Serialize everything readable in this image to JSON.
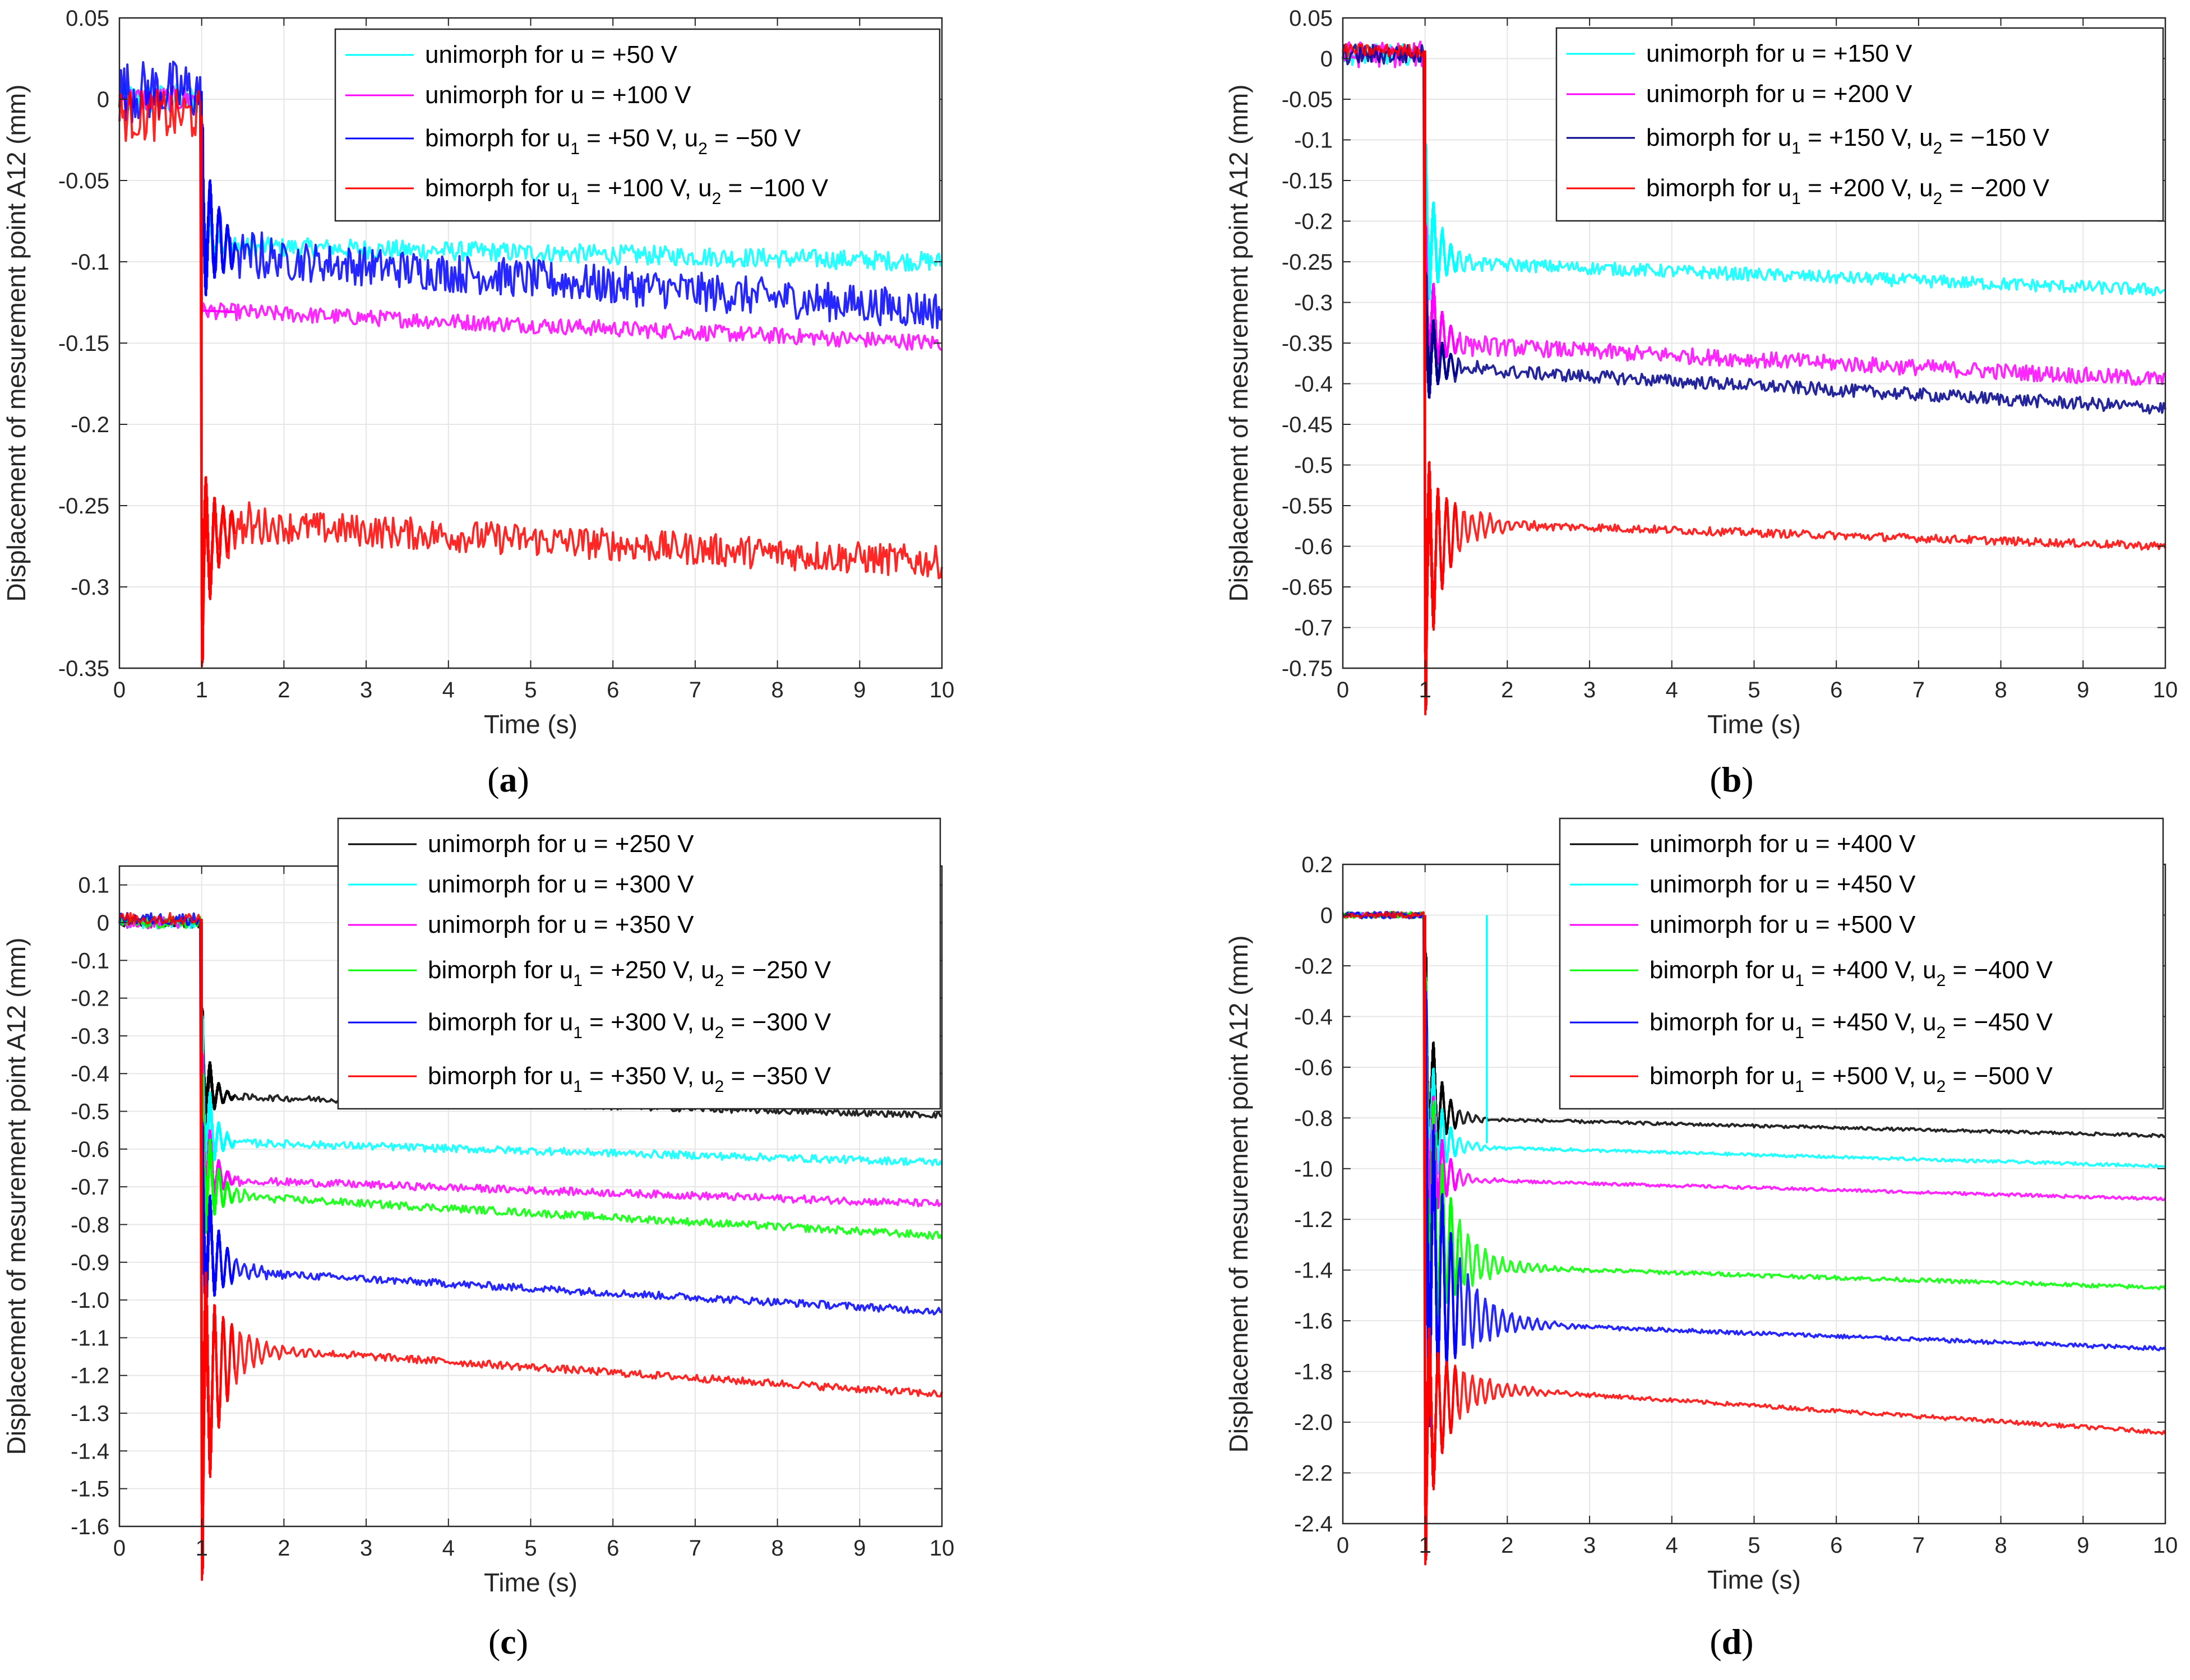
{
  "chart_data": [
    {
      "type": "line",
      "id": "a",
      "caption": "a",
      "xlabel": "Time (s)",
      "ylabel": "Displacement of mesurement point A12 (mm)",
      "xlim": [
        0,
        10
      ],
      "ylim": [
        -0.35,
        0.05
      ],
      "xticks": [
        0,
        1,
        2,
        3,
        4,
        5,
        6,
        7,
        8,
        9,
        10
      ],
      "xtick_labels": [
        "0",
        "1",
        "2",
        "3",
        "4",
        "5",
        "6",
        "7",
        "8",
        "9",
        "10"
      ],
      "yticks": [
        0.05,
        0,
        -0.05,
        -0.1,
        -0.15,
        -0.2,
        -0.25,
        -0.3,
        -0.35
      ],
      "ytick_labels": [
        "0.05",
        "0",
        "-0.05",
        "-0.1",
        "-0.15",
        "-0.2",
        "-0.25",
        "-0.3",
        "-0.35"
      ],
      "grid": true,
      "legend": "top-right",
      "series": [
        {
          "name": "unimorph for u = +50 V",
          "label_parts": [
            "unimorph for u = +50 V"
          ],
          "color": "#00ffff",
          "pre": 0.0,
          "spike": -0.07,
          "settle": -0.09,
          "tau": 0.3,
          "end": -0.1,
          "noise": 0.006
        },
        {
          "name": "unimorph for u = +100 V",
          "label_parts": [
            "unimorph for u = +100 V"
          ],
          "color": "#ff00ff",
          "pre": 0.0,
          "spike": -0.13,
          "settle": -0.13,
          "tau": 0.3,
          "end": -0.15,
          "noise": 0.005
        },
        {
          "name": "bimorph for u1 = +50 V, u2 = −50 V",
          "label_parts": [
            "bimorph for u",
            "1",
            " = +50 V, u",
            "2",
            " = −50 V"
          ],
          "color": "#0000ff",
          "pre": 0.005,
          "spike": -0.04,
          "settle": -0.095,
          "tau": 0.35,
          "end": -0.13,
          "noise": 0.012
        },
        {
          "name": "bimorph for u1 = +100 V, u2 = −100 V",
          "label_parts": [
            "bimorph for u",
            "1",
            " = +100 V, u",
            "2",
            " = −100 V"
          ],
          "color": "#ff0000",
          "pre": -0.01,
          "spike": -0.32,
          "settle": -0.26,
          "tau": 0.3,
          "end": -0.285,
          "noise": 0.01
        }
      ]
    },
    {
      "type": "line",
      "id": "b",
      "caption": "b",
      "xlabel": "Time (s)",
      "ylabel": "Displacement of mesurement point A12 (mm)",
      "xlim": [
        0,
        10
      ],
      "ylim": [
        -0.75,
        0.05
      ],
      "xticks": [
        0,
        1,
        2,
        3,
        4,
        5,
        6,
        7,
        8,
        9,
        10
      ],
      "xtick_labels": [
        "0",
        "1",
        "2",
        "3",
        "4",
        "5",
        "6",
        "7",
        "8",
        "9",
        "10"
      ],
      "yticks": [
        0.05,
        0,
        -0.05,
        -0.1,
        -0.15,
        -0.2,
        -0.25,
        -0.3,
        -0.35,
        -0.4,
        -0.45,
        -0.5,
        -0.55,
        -0.6,
        -0.65,
        -0.7,
        -0.75
      ],
      "ytick_labels": [
        "0.05",
        "0",
        "-0.05",
        "-0.1",
        "-0.15",
        "-0.2",
        "-0.25",
        "-0.3",
        "-0.35",
        "-0.4",
        "-0.45",
        "-0.5",
        "-0.55",
        "-0.6",
        "-0.65",
        "-0.7",
        "-0.75"
      ],
      "grid": true,
      "legend": "top-right",
      "series": [
        {
          "name": "unimorph for u = +150 V",
          "label_parts": [
            "unimorph for u = +150 V"
          ],
          "color": "#00ffff",
          "pre": 0.005,
          "spike": -0.15,
          "settle": -0.25,
          "tau": 0.25,
          "end": -0.285,
          "noise": 0.008
        },
        {
          "name": "unimorph for u = +200 V",
          "label_parts": [
            "unimorph for u = +200 V"
          ],
          "color": "#ff00ff",
          "pre": 0.005,
          "spike": -0.25,
          "settle": -0.35,
          "tau": 0.25,
          "end": -0.395,
          "noise": 0.01
        },
        {
          "name": "bimorph for u1 = +150 V, u2 = −150 V",
          "label_parts": [
            "bimorph for u",
            "1",
            " = +150 V, u",
            "2",
            " = −150 V"
          ],
          "color": "#00008b",
          "pre": 0.005,
          "spike": -0.3,
          "settle": -0.38,
          "tau": 0.25,
          "end": -0.43,
          "noise": 0.008
        },
        {
          "name": "bimorph for u1 = +200 V, u2 = −200 V",
          "label_parts": [
            "bimorph for u",
            "1",
            " = +200 V, u",
            "2",
            " = −200 V"
          ],
          "color": "#ff0000",
          "pre": 0.01,
          "spike": -0.73,
          "settle": -0.57,
          "tau": 0.35,
          "end": -0.6,
          "noise": 0.005
        }
      ]
    },
    {
      "type": "line",
      "id": "c",
      "caption": "c",
      "xlabel": "Time (s)",
      "ylabel": "Displacement of mesurement point A12 (mm)",
      "xlim": [
        0,
        10
      ],
      "ylim": [
        -1.6,
        0.15
      ],
      "xticks": [
        0,
        1,
        2,
        3,
        4,
        5,
        6,
        7,
        8,
        9,
        10
      ],
      "xtick_labels": [
        "0",
        "1",
        "2",
        "3",
        "4",
        "5",
        "6",
        "7",
        "8",
        "9",
        "10"
      ],
      "yticks": [
        0.1,
        0,
        -0.1,
        -0.2,
        -0.3,
        -0.4,
        -0.5,
        -0.6,
        -0.7,
        -0.8,
        -0.9,
        -1.0,
        -1.1,
        -1.2,
        -1.3,
        -1.4,
        -1.5,
        -1.6
      ],
      "ytick_labels": [
        "0.1",
        "0",
        "-0.1",
        "-0.2",
        "-0.3",
        "-0.4",
        "-0.5",
        "-0.6",
        "-0.7",
        "-0.8",
        "-0.9",
        "-1.0",
        "-1.1",
        "-1.2",
        "-1.3",
        "-1.4",
        "-1.5",
        "-1.6"
      ],
      "grid": true,
      "legend": "top-right",
      "series": [
        {
          "name": "unimorph for u = +250 V",
          "label_parts": [
            "unimorph for u = +250 V"
          ],
          "color": "#000000",
          "pre": 0.0,
          "spike": -0.3,
          "settle": -0.46,
          "tau": 0.15,
          "end": -0.51,
          "noise": 0.008
        },
        {
          "name": "unimorph for u = +300 V",
          "label_parts": [
            "unimorph for u = +300 V"
          ],
          "color": "#00ffff",
          "pre": 0.0,
          "spike": -0.35,
          "settle": -0.58,
          "tau": 0.15,
          "end": -0.635,
          "noise": 0.01
        },
        {
          "name": "unimorph for u = +350 V",
          "label_parts": [
            "unimorph for u = +350 V"
          ],
          "color": "#ff00ff",
          "pre": 0.0,
          "spike": -0.45,
          "settle": -0.68,
          "tau": 0.15,
          "end": -0.745,
          "noise": 0.01
        },
        {
          "name": "bimorph for u1 = +250 V, u2 = −250 V",
          "label_parts": [
            "bimorph for u",
            "1",
            " = +250 V, u",
            "2",
            " = −250 V"
          ],
          "color": "#00ff00",
          "pre": 0.0,
          "spike": -0.5,
          "settle": -0.72,
          "tau": 0.2,
          "end": -0.83,
          "noise": 0.01
        },
        {
          "name": "bimorph for u1 = +300 V, u2 = −300 V",
          "label_parts": [
            "bimorph for u",
            "1",
            " = +300 V, u",
            "2",
            " = −300 V"
          ],
          "color": "#0000ff",
          "pre": 0.01,
          "spike": -0.65,
          "settle": -0.92,
          "tau": 0.25,
          "end": -1.03,
          "noise": 0.01
        },
        {
          "name": "bimorph for u1 = +350 V, u2 = −350 V",
          "label_parts": [
            "bimorph for u",
            "1",
            " = +350 V, u",
            "2",
            " = −350 V"
          ],
          "color": "#ff0000",
          "pre": 0.01,
          "spike": -1.54,
          "settle": -1.12,
          "tau": 0.35,
          "end": -1.25,
          "noise": 0.01
        }
      ]
    },
    {
      "type": "line",
      "id": "d",
      "caption": "d",
      "xlabel": "Time (s)",
      "ylabel": "Displacement of mesurement point A12 (mm)",
      "xlim": [
        0,
        10
      ],
      "ylim": [
        -2.4,
        0.2
      ],
      "xticks": [
        0,
        1,
        2,
        3,
        4,
        5,
        6,
        7,
        8,
        9,
        10
      ],
      "xtick_labels": [
        "0",
        "1",
        "2",
        "3",
        "4",
        "5",
        "6",
        "7",
        "8",
        "9",
        "10"
      ],
      "yticks": [
        0.2,
        0,
        -0.2,
        -0.4,
        -0.6,
        -0.8,
        -1.0,
        -1.2,
        -1.4,
        -1.6,
        -1.8,
        -2.0,
        -2.2,
        -2.4
      ],
      "ytick_labels": [
        "0.2",
        "0",
        "-0.2",
        "-0.4",
        "-0.6",
        "-0.8",
        "-1.0",
        "-1.2",
        "-1.4",
        "-1.6",
        "-1.8",
        "-2.0",
        "-2.2",
        "-2.4"
      ],
      "grid": true,
      "legend": "top-right",
      "series": [
        {
          "name": "unimorph for u = +400 V",
          "label_parts": [
            "unimorph for u = +400 V"
          ],
          "color": "#000000",
          "pre": 0.0,
          "spike": -0.35,
          "settle": -0.8,
          "tau": 0.2,
          "end": -0.87,
          "noise": 0.006
        },
        {
          "name": "unimorph for u = +450 V",
          "label_parts": [
            "unimorph for u = +450 V"
          ],
          "color": "#00ffff",
          "pre": 0.0,
          "spike": -0.45,
          "settle": -0.91,
          "tau": 0.2,
          "end": -0.99,
          "noise": 0.006,
          "glitch": {
            "x": 1.75,
            "to": 0.0,
            "from": -0.9
          }
        },
        {
          "name": "unimorph for u = +500 V",
          "label_parts": [
            "unimorph for u = +500 V"
          ],
          "color": "#ff00ff",
          "pre": 0.0,
          "spike": -0.55,
          "settle": -1.04,
          "tau": 0.2,
          "end": -1.12,
          "noise": 0.006
        },
        {
          "name": "bimorph for u1 = +400 V, u2 = −400 V",
          "label_parts": [
            "bimorph for u",
            "1",
            " = +400 V, u",
            "2",
            " = −400 V"
          ],
          "color": "#00ff00",
          "pre": 0.0,
          "spike": -0.6,
          "settle": -1.38,
          "tau": 0.35,
          "end": -1.47,
          "noise": 0.008
        },
        {
          "name": "bimorph for u1 = +450 V, u2 = −450 V",
          "label_parts": [
            "bimorph for u",
            "1",
            " = +450 V, u",
            "2",
            " = −450 V"
          ],
          "color": "#0000ff",
          "pre": 0.0,
          "spike": -0.7,
          "settle": -1.6,
          "tau": 0.4,
          "end": -1.71,
          "noise": 0.008
        },
        {
          "name": "bimorph for u1 = +500 V, u2 = −500 V",
          "label_parts": [
            "bimorph for u",
            "1",
            " = +500 V, u",
            "2",
            " = −500 V"
          ],
          "color": "#ff0000",
          "pre": 0.0,
          "spike": -2.33,
          "settle": -1.85,
          "tau": 0.4,
          "end": -2.04,
          "noise": 0.008
        }
      ]
    }
  ]
}
